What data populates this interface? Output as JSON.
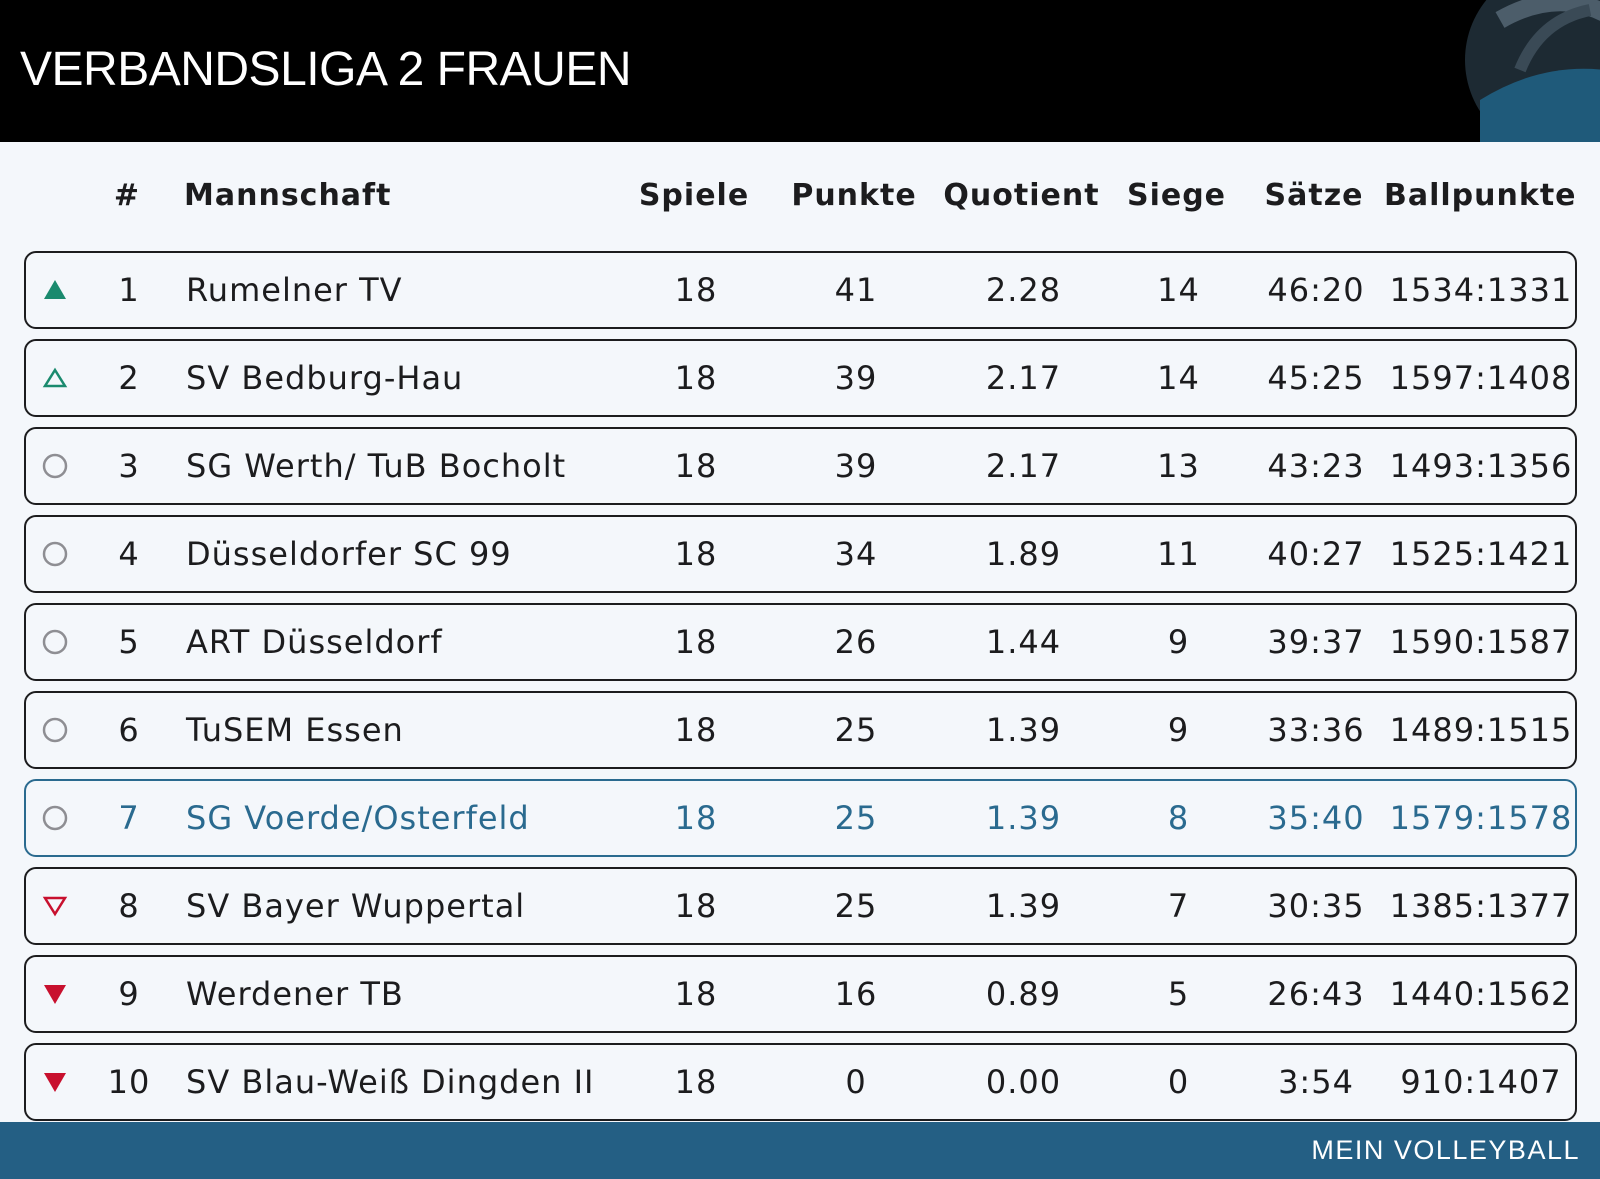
{
  "header": {
    "title": "VERBANDSLIGA 2 FRAUEN"
  },
  "columns": {
    "rank": "#",
    "team": "Mannschaft",
    "spiele": "Spiele",
    "punkte": "Punkte",
    "quotient": "Quotient",
    "siege": "Siege",
    "saetze": "Sätze",
    "ballpunkte": "Ballpunkte"
  },
  "rows": [
    {
      "trend": "up-filled",
      "rank": "1",
      "team": "Rumelner TV",
      "spiele": "18",
      "punkte": "41",
      "quotient": "2.28",
      "siege": "14",
      "saetze": "46:20",
      "ballpunkte": "1534:1331"
    },
    {
      "trend": "up-outline",
      "rank": "2",
      "team": "SV Bedburg-Hau",
      "spiele": "18",
      "punkte": "39",
      "quotient": "2.17",
      "siege": "14",
      "saetze": "45:25",
      "ballpunkte": "1597:1408"
    },
    {
      "trend": "neutral",
      "rank": "3",
      "team": "SG Werth/ TuB Bocholt",
      "spiele": "18",
      "punkte": "39",
      "quotient": "2.17",
      "siege": "13",
      "saetze": "43:23",
      "ballpunkte": "1493:1356"
    },
    {
      "trend": "neutral",
      "rank": "4",
      "team": "Düsseldorfer SC 99",
      "spiele": "18",
      "punkte": "34",
      "quotient": "1.89",
      "siege": "11",
      "saetze": "40:27",
      "ballpunkte": "1525:1421"
    },
    {
      "trend": "neutral",
      "rank": "5",
      "team": "ART Düsseldorf",
      "spiele": "18",
      "punkte": "26",
      "quotient": "1.44",
      "siege": "9",
      "saetze": "39:37",
      "ballpunkte": "1590:1587"
    },
    {
      "trend": "neutral",
      "rank": "6",
      "team": "TuSEM Essen",
      "spiele": "18",
      "punkte": "25",
      "quotient": "1.39",
      "siege": "9",
      "saetze": "33:36",
      "ballpunkte": "1489:1515"
    },
    {
      "trend": "neutral",
      "rank": "7",
      "team": "SG Voerde/Osterfeld",
      "spiele": "18",
      "punkte": "25",
      "quotient": "1.39",
      "siege": "8",
      "saetze": "35:40",
      "ballpunkte": "1579:1578",
      "highlighted": true
    },
    {
      "trend": "down-outline",
      "rank": "8",
      "team": "SV Bayer Wuppertal",
      "spiele": "18",
      "punkte": "25",
      "quotient": "1.39",
      "siege": "7",
      "saetze": "30:35",
      "ballpunkte": "1385:1377"
    },
    {
      "trend": "down-filled",
      "rank": "9",
      "team": "Werdener TB",
      "spiele": "18",
      "punkte": "16",
      "quotient": "0.89",
      "siege": "5",
      "saetze": "26:43",
      "ballpunkte": "1440:1562"
    },
    {
      "trend": "down-filled",
      "rank": "10",
      "team": "SV Blau-Weiß Dingden II",
      "spiele": "18",
      "punkte": "0",
      "quotient": "0.00",
      "siege": "0",
      "saetze": "3:54",
      "ballpunkte": "910:1407"
    }
  ],
  "icons": {
    "up-filled": "triangle-up-filled-icon",
    "up-outline": "triangle-up-outline-icon",
    "neutral": "circle-outline-icon",
    "down-outline": "triangle-down-outline-icon",
    "down-filled": "triangle-down-filled-icon"
  },
  "colors": {
    "promotion": "#1a8a6e",
    "relegation": "#c8102e",
    "neutral": "#8e8e93",
    "highlight": "#2a6a8f",
    "footer": "#245f84",
    "header": "#000000"
  },
  "footer": {
    "brand": "MEIN VOLLEYBALL"
  }
}
